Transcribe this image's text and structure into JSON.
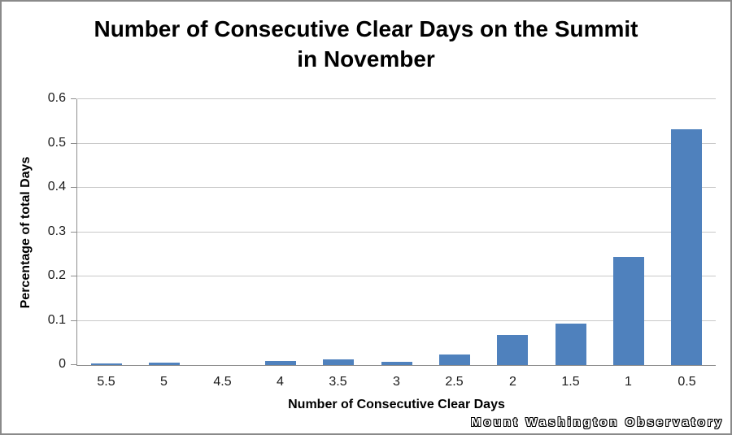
{
  "window": {
    "background_color": "#FFFFFF",
    "border_color": "#8A8A8A"
  },
  "chart_data": {
    "type": "bar",
    "title": "Number of Consecutive Clear Days on the Summit\nin November",
    "xlabel": "Number of Consecutive Clear Days",
    "ylabel": "Percentage of total Days",
    "categories": [
      "5.5",
      "5",
      "4.5",
      "4",
      "3.5",
      "3",
      "2.5",
      "2",
      "1.5",
      "1",
      "0.5"
    ],
    "values": [
      0.003,
      0.005,
      0,
      0.01,
      0.013,
      0.008,
      0.024,
      0.067,
      0.093,
      0.244,
      0.532
    ],
    "ylim": [
      0,
      0.6
    ],
    "yticks": [
      0,
      0.1,
      0.2,
      0.3,
      0.4,
      0.5,
      0.6
    ],
    "ytick_labels": [
      "0",
      "0.1",
      "0.2",
      "0.3",
      "0.4",
      "0.5",
      "0.6"
    ],
    "grid": true,
    "legend": false,
    "bar_color": "#4F81BD",
    "gridline_color": "#C9C9C9",
    "axis_color": "#8E8E8E",
    "text_color": "#1A1A1A"
  },
  "watermark": {
    "text": "Mount Washington Observatory"
  }
}
